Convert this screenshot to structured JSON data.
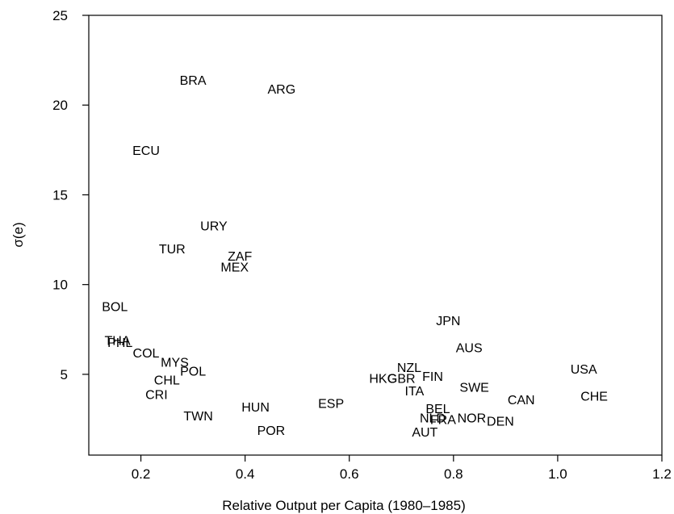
{
  "chart_data": {
    "type": "scatter",
    "title": "",
    "xlabel": "Relative Output per Capita (1980–1985)",
    "ylabel": "σ(e)",
    "xlim": [
      0.1,
      1.2
    ],
    "ylim": [
      0.5,
      25
    ],
    "xticks": [
      "0.2",
      "0.4",
      "0.6",
      "0.8",
      "1.0",
      "1.2"
    ],
    "yticks": [
      "5",
      "10",
      "15",
      "20",
      "25"
    ],
    "grid": false,
    "legend": "none",
    "marker": "text-labels",
    "points": [
      {
        "label": "BRA",
        "x": 0.3,
        "y": 21.4
      },
      {
        "label": "ARG",
        "x": 0.47,
        "y": 20.9
      },
      {
        "label": "ECU",
        "x": 0.21,
        "y": 17.5
      },
      {
        "label": "URY",
        "x": 0.34,
        "y": 13.3
      },
      {
        "label": "TUR",
        "x": 0.26,
        "y": 12.0
      },
      {
        "label": "ZAF",
        "x": 0.39,
        "y": 11.6
      },
      {
        "label": "MEX",
        "x": 0.38,
        "y": 11.0
      },
      {
        "label": "BOL",
        "x": 0.15,
        "y": 8.8
      },
      {
        "label": "THA",
        "x": 0.155,
        "y": 6.9
      },
      {
        "label": "PHL",
        "x": 0.16,
        "y": 6.8
      },
      {
        "label": "COL",
        "x": 0.21,
        "y": 6.2
      },
      {
        "label": "MYS",
        "x": 0.265,
        "y": 5.7
      },
      {
        "label": "POL",
        "x": 0.3,
        "y": 5.2
      },
      {
        "label": "CHL",
        "x": 0.25,
        "y": 4.7
      },
      {
        "label": "CRI",
        "x": 0.23,
        "y": 3.9
      },
      {
        "label": "TWN",
        "x": 0.31,
        "y": 2.7
      },
      {
        "label": "HUN",
        "x": 0.42,
        "y": 3.2
      },
      {
        "label": "POR",
        "x": 0.45,
        "y": 1.9
      },
      {
        "label": "ESP",
        "x": 0.565,
        "y": 3.4
      },
      {
        "label": "HKG",
        "x": 0.665,
        "y": 4.8
      },
      {
        "label": "GBR",
        "x": 0.7,
        "y": 4.8
      },
      {
        "label": "NZL",
        "x": 0.715,
        "y": 5.4
      },
      {
        "label": "FIN",
        "x": 0.76,
        "y": 4.9
      },
      {
        "label": "ITA",
        "x": 0.725,
        "y": 4.1
      },
      {
        "label": "JPN",
        "x": 0.79,
        "y": 8.0
      },
      {
        "label": "AUS",
        "x": 0.83,
        "y": 6.5
      },
      {
        "label": "SWE",
        "x": 0.84,
        "y": 4.3
      },
      {
        "label": "BEL",
        "x": 0.77,
        "y": 3.1
      },
      {
        "label": "NLD",
        "x": 0.76,
        "y": 2.6
      },
      {
        "label": "FRA",
        "x": 0.78,
        "y": 2.5
      },
      {
        "label": "NOR",
        "x": 0.835,
        "y": 2.6
      },
      {
        "label": "AUT",
        "x": 0.745,
        "y": 1.8
      },
      {
        "label": "DEN",
        "x": 0.89,
        "y": 2.4
      },
      {
        "label": "CAN",
        "x": 0.93,
        "y": 3.6
      },
      {
        "label": "USA",
        "x": 1.05,
        "y": 5.3
      },
      {
        "label": "CHE",
        "x": 1.07,
        "y": 3.8
      }
    ]
  }
}
